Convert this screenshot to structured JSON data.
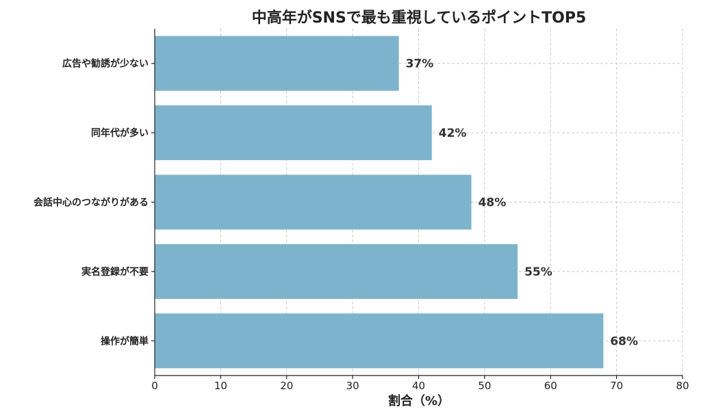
{
  "chart_data": {
    "type": "bar",
    "orientation": "horizontal",
    "title": "中高年がSNSで最も重視しているポイントTOP5",
    "xlabel": "割合（%）",
    "ylabel": "",
    "categories": [
      "広告や勧誘が少ない",
      "同年代が多い",
      "会話中心のつながりがある",
      "実名登録が不要",
      "操作が簡単"
    ],
    "values": [
      37,
      42,
      48,
      55,
      68
    ],
    "value_labels": [
      "37%",
      "42%",
      "48%",
      "55%",
      "68%"
    ],
    "xlim": [
      0,
      80
    ],
    "xticks": [
      "0",
      "10",
      "20",
      "30",
      "40",
      "50",
      "60",
      "70",
      "80"
    ],
    "grid": true,
    "bar_color": "#7db3cc"
  }
}
